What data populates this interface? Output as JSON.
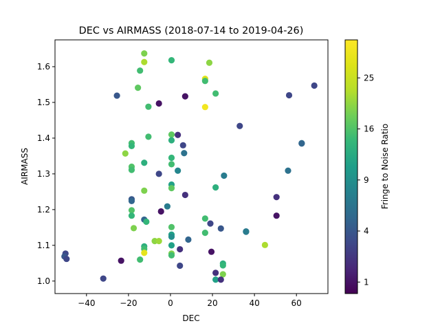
{
  "chart_data": {
    "type": "scatter",
    "title": "DEC vs AIRMASS (2018-07-14 to 2019-04-26)",
    "xlabel": "DEC",
    "ylabel": "AIRMASS",
    "xlim": [
      -55,
      75
    ],
    "ylim": [
      0.965,
      1.675
    ],
    "xticks": [
      -40,
      -20,
      0,
      20,
      40,
      60
    ],
    "yticks": [
      1.0,
      1.1,
      1.2,
      1.3,
      1.4,
      1.5,
      1.6
    ],
    "colorbar": {
      "label": "Fringe to Noise Ratio",
      "scale": "sqrt",
      "range": [
        0.6,
        33
      ],
      "ticks": [
        1,
        4,
        9,
        16,
        25
      ],
      "colormap": "viridis"
    },
    "grid": false,
    "points": [
      {
        "x": -12.5,
        "y": 1.637,
        "c": 19
      },
      {
        "x": -12.5,
        "y": 1.613,
        "c": 22
      },
      {
        "x": 0.5,
        "y": 1.618,
        "c": 14
      },
      {
        "x": 18.5,
        "y": 1.611,
        "c": 20
      },
      {
        "x": -14.5,
        "y": 1.589,
        "c": 15
      },
      {
        "x": 16.5,
        "y": 1.566,
        "c": 28
      },
      {
        "x": 16.5,
        "y": 1.56,
        "c": 15
      },
      {
        "x": -15.5,
        "y": 1.541,
        "c": 17
      },
      {
        "x": 21.5,
        "y": 1.525,
        "c": 15
      },
      {
        "x": -25.5,
        "y": 1.519,
        "c": 4
      },
      {
        "x": 7.0,
        "y": 1.517,
        "c": 1
      },
      {
        "x": 56.5,
        "y": 1.52,
        "c": 3
      },
      {
        "x": 68.5,
        "y": 1.547,
        "c": 3
      },
      {
        "x": -5.5,
        "y": 1.497,
        "c": 1
      },
      {
        "x": -10.5,
        "y": 1.488,
        "c": 15
      },
      {
        "x": 16.5,
        "y": 1.487,
        "c": 31
      },
      {
        "x": 33.0,
        "y": 1.434,
        "c": 3
      },
      {
        "x": 0.5,
        "y": 1.41,
        "c": 17
      },
      {
        "x": 3.5,
        "y": 1.409,
        "c": 2
      },
      {
        "x": -10.5,
        "y": 1.404,
        "c": 15
      },
      {
        "x": 0.5,
        "y": 1.394,
        "c": 13
      },
      {
        "x": 62.5,
        "y": 1.386,
        "c": 6
      },
      {
        "x": 62.5,
        "y": 1.385,
        "c": 5
      },
      {
        "x": -18.5,
        "y": 1.386,
        "c": 15
      },
      {
        "x": -18.5,
        "y": 1.378,
        "c": 14
      },
      {
        "x": 6.0,
        "y": 1.38,
        "c": 3
      },
      {
        "x": -21.5,
        "y": 1.357,
        "c": 20
      },
      {
        "x": 6.5,
        "y": 1.358,
        "c": 6
      },
      {
        "x": 0.5,
        "y": 1.345,
        "c": 14
      },
      {
        "x": -12.5,
        "y": 1.331,
        "c": 13
      },
      {
        "x": 0.5,
        "y": 1.327,
        "c": 15
      },
      {
        "x": -18.5,
        "y": 1.32,
        "c": 16
      },
      {
        "x": -18.5,
        "y": 1.311,
        "c": 15
      },
      {
        "x": 3.5,
        "y": 1.309,
        "c": 8
      },
      {
        "x": 56.0,
        "y": 1.309,
        "c": 6
      },
      {
        "x": -5.5,
        "y": 1.3,
        "c": 3
      },
      {
        "x": 25.5,
        "y": 1.295,
        "c": 7
      },
      {
        "x": 0.5,
        "y": 1.27,
        "c": 11
      },
      {
        "x": 0.5,
        "y": 1.26,
        "c": 17
      },
      {
        "x": 21.5,
        "y": 1.262,
        "c": 13
      },
      {
        "x": -12.5,
        "y": 1.253,
        "c": 19
      },
      {
        "x": 7.0,
        "y": 1.241,
        "c": 2
      },
      {
        "x": 50.5,
        "y": 1.235,
        "c": 2
      },
      {
        "x": -18.5,
        "y": 1.229,
        "c": 4
      },
      {
        "x": -18.5,
        "y": 1.224,
        "c": 5
      },
      {
        "x": -1.5,
        "y": 1.209,
        "c": 7
      },
      {
        "x": -18.5,
        "y": 1.198,
        "c": 16
      },
      {
        "x": -4.5,
        "y": 1.195,
        "c": 1
      },
      {
        "x": -18.5,
        "y": 1.183,
        "c": 14
      },
      {
        "x": 50.5,
        "y": 1.183,
        "c": 1
      },
      {
        "x": 16.5,
        "y": 1.175,
        "c": 15
      },
      {
        "x": -12.5,
        "y": 1.172,
        "c": 5
      },
      {
        "x": -11.5,
        "y": 1.166,
        "c": 14
      },
      {
        "x": 19.0,
        "y": 1.161,
        "c": 3
      },
      {
        "x": 0.5,
        "y": 1.151,
        "c": 16
      },
      {
        "x": -17.5,
        "y": 1.148,
        "c": 19
      },
      {
        "x": 24.0,
        "y": 1.147,
        "c": 4
      },
      {
        "x": 36.0,
        "y": 1.139,
        "c": 6
      },
      {
        "x": 36.0,
        "y": 1.138,
        "c": 7
      },
      {
        "x": 16.5,
        "y": 1.135,
        "c": 15
      },
      {
        "x": 0.5,
        "y": 1.13,
        "c": 11
      },
      {
        "x": 0.5,
        "y": 1.124,
        "c": 9
      },
      {
        "x": 8.5,
        "y": 1.116,
        "c": 5
      },
      {
        "x": -7.5,
        "y": 1.112,
        "c": 20
      },
      {
        "x": -5.5,
        "y": 1.112,
        "c": 21
      },
      {
        "x": 45.0,
        "y": 1.101,
        "c": 22
      },
      {
        "x": 0.5,
        "y": 1.1,
        "c": 11
      },
      {
        "x": -12.5,
        "y": 1.097,
        "c": 13
      },
      {
        "x": -12.5,
        "y": 1.09,
        "c": 15
      },
      {
        "x": 4.5,
        "y": 1.089,
        "c": 2
      },
      {
        "x": 19.5,
        "y": 1.082,
        "c": 1
      },
      {
        "x": -12.5,
        "y": 1.079,
        "c": 29
      },
      {
        "x": 0.5,
        "y": 1.077,
        "c": 19
      },
      {
        "x": 0.5,
        "y": 1.072,
        "c": 15
      },
      {
        "x": -50.0,
        "y": 1.077,
        "c": 3
      },
      {
        "x": -50.5,
        "y": 1.069,
        "c": 4
      },
      {
        "x": -49.5,
        "y": 1.062,
        "c": 3
      },
      {
        "x": -14.5,
        "y": 1.06,
        "c": 15
      },
      {
        "x": -23.5,
        "y": 1.057,
        "c": 1
      },
      {
        "x": 25.0,
        "y": 1.049,
        "c": 13
      },
      {
        "x": 25.0,
        "y": 1.044,
        "c": 14
      },
      {
        "x": 4.5,
        "y": 1.043,
        "c": 3
      },
      {
        "x": 21.5,
        "y": 1.023,
        "c": 2
      },
      {
        "x": 25.0,
        "y": 1.019,
        "c": 19
      },
      {
        "x": -32.0,
        "y": 1.007,
        "c": 3
      },
      {
        "x": 21.5,
        "y": 1.004,
        "c": 11
      },
      {
        "x": 24.0,
        "y": 1.004,
        "c": 2
      }
    ]
  }
}
